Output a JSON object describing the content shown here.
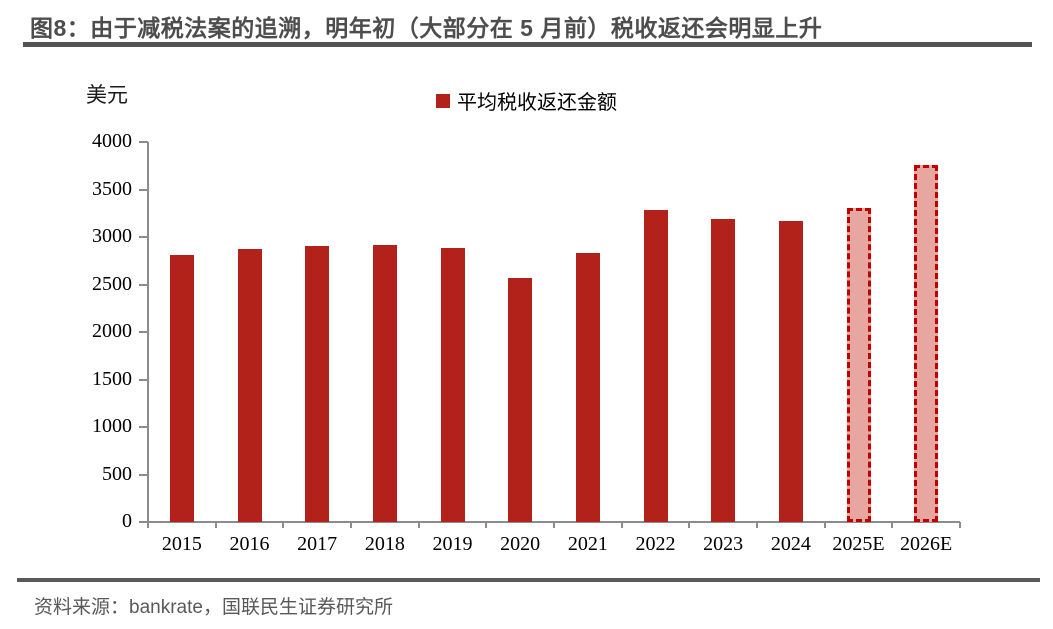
{
  "header": {
    "title": "图8：由于减税法案的追溯，明年初（大部分在 5 月前）税收返还会明显上升"
  },
  "chart_data": {
    "type": "bar",
    "title": "图8：由于减税法案的追溯，明年初（大部分在 5 月前）税收返还会明显上升",
    "unit_label": "美元",
    "xlabel": "",
    "ylabel": "美元",
    "categories": [
      "2015",
      "2016",
      "2017",
      "2018",
      "2019",
      "2020",
      "2021",
      "2022",
      "2023",
      "2024",
      "2025E",
      "2026E"
    ],
    "series": [
      {
        "name": "平均税收返还金额",
        "values": [
          2810,
          2870,
          2900,
          2915,
          2880,
          2565,
          2835,
          3280,
          3185,
          3165,
          3300,
          3755
        ],
        "forecast_flags": [
          false,
          false,
          false,
          false,
          false,
          false,
          false,
          false,
          false,
          false,
          true,
          true
        ]
      }
    ],
    "ylim": [
      0,
      4000
    ],
    "yticks": [
      0,
      500,
      1000,
      1500,
      2000,
      2500,
      3000,
      3500,
      4000
    ],
    "grid": false,
    "legend_position": "top-center",
    "colors": {
      "bar": "#b2221a",
      "forecast_fill": "#e8a6a1",
      "forecast_border": "#c00000",
      "axis": "#8c8c8c"
    }
  },
  "footer": {
    "source": "资料来源：bankrate，国联民生证券研究所"
  }
}
